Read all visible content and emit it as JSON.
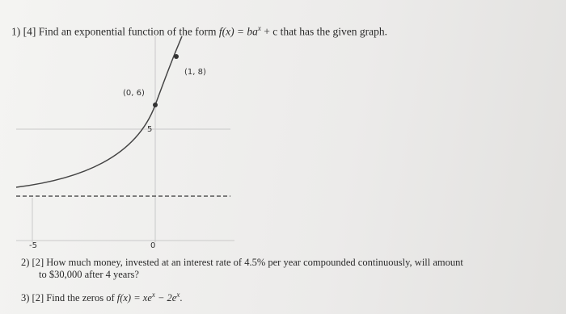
{
  "question1": {
    "number": "1)",
    "points": "[4]",
    "text_before": "Find an exponential function of the form",
    "formula_base": "f(x) = ba",
    "formula_exp": "x",
    "text_after": "+ c that has the given graph."
  },
  "graph": {
    "point_labels": [
      "(0, 6)",
      "(1, 8)"
    ],
    "axis_labels": {
      "x_left": "-5",
      "x_origin": "0",
      "y_tick": "5"
    }
  },
  "question2": {
    "number": "2)",
    "points": "[2]",
    "lines": [
      "How much money, invested at an interest rate of 4.5% per year compounded continuously, will amount",
      "to $30,000 after 4 years?"
    ]
  },
  "question3": {
    "number": "3)",
    "points": "[2]",
    "text_before": "Find the zeros of",
    "formula_part1": "f(x) = xe",
    "exp1": "x",
    "formula_part2": "− 2e",
    "exp2": "x",
    "end": "."
  }
}
